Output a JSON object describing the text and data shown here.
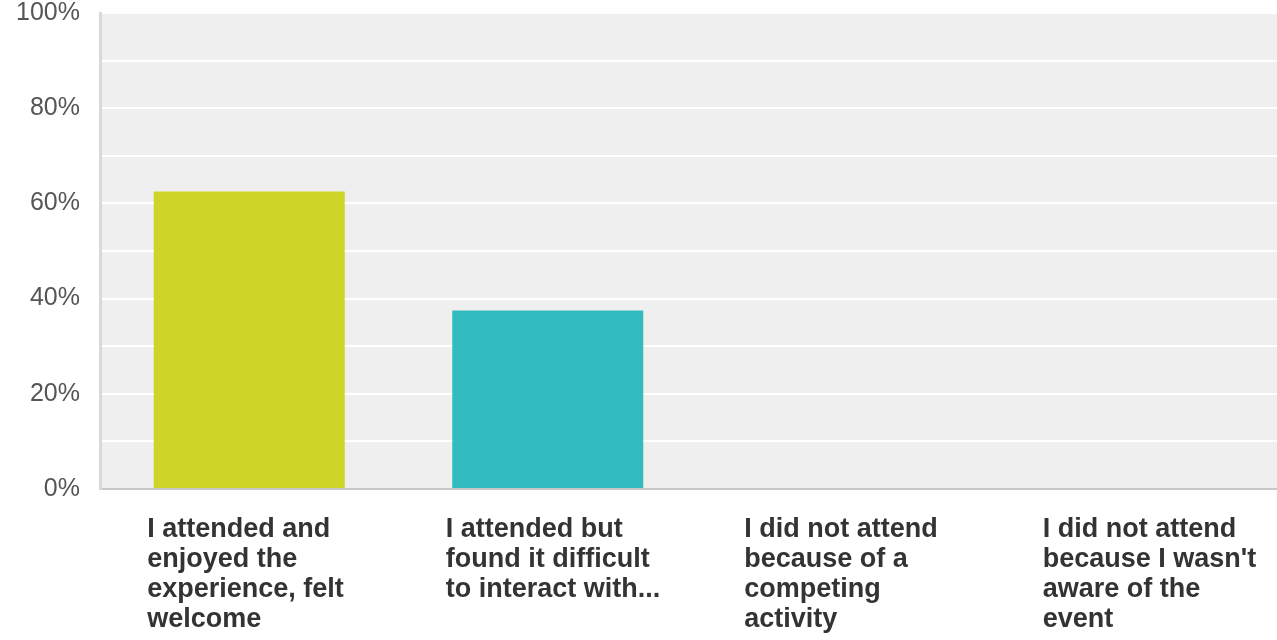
{
  "chart_data": {
    "type": "bar",
    "categories": [
      "I attended and enjoyed the experience, felt welcome",
      "I attended but found it difficult to interact with...",
      "I did not attend because of a competing activity",
      "I did not attend because I wasn't aware of the event"
    ],
    "values": [
      62.5,
      37.5,
      0,
      0
    ],
    "colors": [
      "#cfd428",
      "#33bcbf",
      null,
      null
    ],
    "ylim": [
      0,
      100
    ],
    "yticks": [
      {
        "value": 0,
        "label": "0%"
      },
      {
        "value": 10,
        "label": null
      },
      {
        "value": 20,
        "label": "20%"
      },
      {
        "value": 30,
        "label": null
      },
      {
        "value": 40,
        "label": "40%"
      },
      {
        "value": 50,
        "label": null
      },
      {
        "value": 60,
        "label": "60%"
      },
      {
        "value": 70,
        "label": null
      },
      {
        "value": 80,
        "label": "80%"
      },
      {
        "value": 90,
        "label": null
      },
      {
        "value": 100,
        "label": "100%"
      }
    ],
    "grid": "y",
    "legend": false
  }
}
